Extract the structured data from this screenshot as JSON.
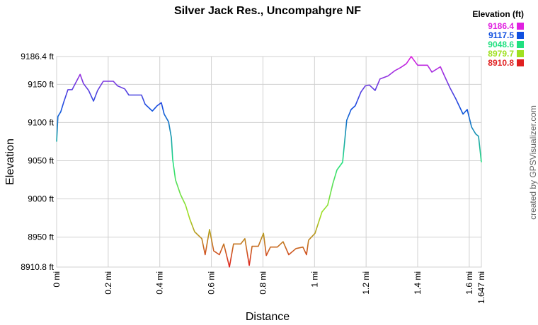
{
  "chart_data": {
    "type": "line",
    "title": "Silver Jack Res., Uncompahgre NF",
    "x_label": "Distance",
    "y_label": "Elevation",
    "watermark": "created by GPSVisualizer.com",
    "legend_title": "Elevation (ft)",
    "legend": [
      {
        "value": 9186.4,
        "label": "9186.4",
        "color": "#e020e0"
      },
      {
        "value": 9117.5,
        "label": "9117.5",
        "color": "#1050e0"
      },
      {
        "value": 9048.6,
        "label": "9048.6",
        "color": "#20e080"
      },
      {
        "value": 8979.7,
        "label": "8979.7",
        "color": "#a0e020"
      },
      {
        "value": 8910.8,
        "label": "8910.8",
        "color": "#e02020"
      }
    ],
    "grid": true,
    "xlim": [
      0,
      1.647
    ],
    "ylim": [
      8910.8,
      9186.4
    ],
    "xticks": [
      {
        "value": 0,
        "label": "0 mi"
      },
      {
        "value": 0.2,
        "label": "0.2 mi"
      },
      {
        "value": 0.4,
        "label": "0.4 mi"
      },
      {
        "value": 0.6,
        "label": "0.6 mi"
      },
      {
        "value": 0.8,
        "label": "0.8 mi"
      },
      {
        "value": 1,
        "label": "1 mi"
      },
      {
        "value": 1.2,
        "label": "1.2 mi"
      },
      {
        "value": 1.4,
        "label": "1.4 mi"
      },
      {
        "value": 1.6,
        "label": "1.6 mi"
      },
      {
        "value": 1.647,
        "label": "1.647 mi"
      }
    ],
    "yticks": [
      {
        "value": 8910.8,
        "label": "8910.8 ft"
      },
      {
        "value": 8950,
        "label": "8950 ft"
      },
      {
        "value": 9000,
        "label": "9000 ft"
      },
      {
        "value": 9050,
        "label": "9050 ft"
      },
      {
        "value": 9100,
        "label": "9100 ft"
      },
      {
        "value": 9150,
        "label": "9150 ft"
      },
      {
        "value": 9186.4,
        "label": "9186.4 ft"
      }
    ],
    "x": [
      0,
      0.005,
      0.016,
      0.027,
      0.044,
      0.06,
      0.077,
      0.091,
      0.104,
      0.124,
      0.143,
      0.159,
      0.181,
      0.22,
      0.236,
      0.264,
      0.28,
      0.329,
      0.343,
      0.371,
      0.39,
      0.406,
      0.417,
      0.434,
      0.445,
      0.45,
      0.461,
      0.48,
      0.5,
      0.516,
      0.535,
      0.563,
      0.576,
      0.593,
      0.609,
      0.631,
      0.648,
      0.67,
      0.686,
      0.714,
      0.73,
      0.747,
      0.758,
      0.782,
      0.802,
      0.813,
      0.829,
      0.856,
      0.878,
      0.9,
      0.928,
      0.955,
      0.969,
      0.977,
      1.002,
      1.029,
      1.051,
      1.071,
      1.087,
      1.109,
      1.125,
      1.142,
      1.158,
      1.18,
      1.197,
      1.213,
      1.235,
      1.254,
      1.285,
      1.312,
      1.334,
      1.356,
      1.375,
      1.4,
      1.438,
      1.455,
      1.488,
      1.504,
      1.526,
      1.548,
      1.576,
      1.592,
      1.609,
      1.625,
      1.636,
      1.647
    ],
    "values": [
      9075,
      9108,
      9114,
      9126,
      9143,
      9143,
      9154,
      9163,
      9151,
      9142,
      9128,
      9142,
      9154,
      9154,
      9148,
      9144,
      9136,
      9136,
      9124,
      9115,
      9122,
      9126,
      9111,
      9101,
      9080,
      9052,
      9025,
      9006,
      8992,
      8974,
      8957,
      8948,
      8927,
      8960,
      8932,
      8927,
      8941,
      8911,
      8941,
      8941,
      8948,
      8913,
      8938,
      8938,
      8955,
      8926,
      8937,
      8937,
      8944,
      8927,
      8935,
      8937,
      8927,
      8946,
      8955,
      8983,
      8992,
      9020,
      9038,
      9048,
      9103,
      9117,
      9122,
      9140,
      9148,
      9149,
      9142,
      9157,
      9161,
      9168,
      9172,
      9177,
      9186.4,
      9175,
      9175,
      9166,
      9173,
      9161,
      9145,
      9131,
      9111,
      9117,
      9094,
      9085,
      9082,
      9048
    ]
  }
}
